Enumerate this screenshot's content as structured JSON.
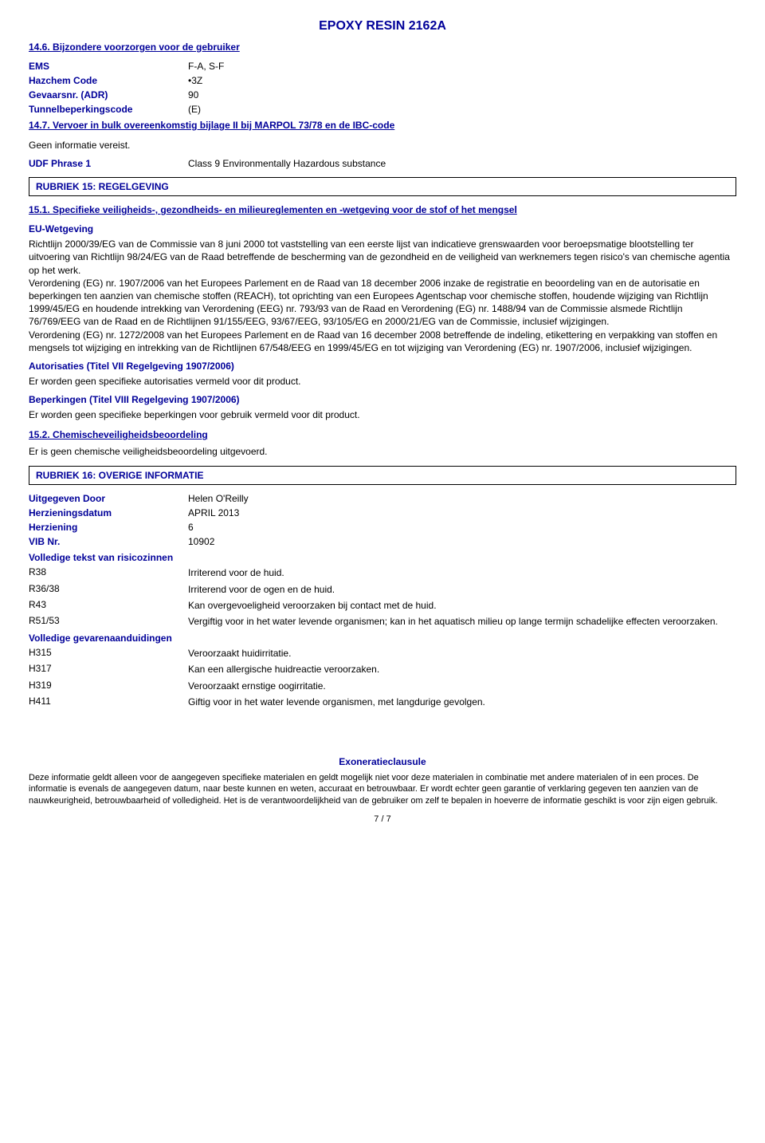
{
  "title": "EPOXY RESIN 2162A",
  "section_14_6": {
    "heading": "14.6. Bijzondere voorzorgen voor de gebruiker",
    "rows": [
      {
        "label": "EMS",
        "value": "F-A,  S-F"
      },
      {
        "label": "Hazchem Code",
        "value": "•3Z"
      },
      {
        "label": "Gevaarsnr. (ADR)",
        "value": "90"
      },
      {
        "label": "Tunnelbeperkingscode",
        "value": "(E)"
      }
    ]
  },
  "section_14_7": {
    "heading": "14.7. Vervoer in bulk overeenkomstig bijlage II bij MARPOL 73/78 en de IBC-code",
    "paragraph": "Geen informatie vereist.",
    "udf_label": "UDF Phrase 1",
    "udf_value": "Class 9 Environmentally Hazardous substance"
  },
  "rubriek_15": "RUBRIEK 15: REGELGEVING",
  "section_15_1": {
    "heading": "15.1. Specifieke veiligheids-, gezondheids- en milieureglementen en -wetgeving voor de stof of het mengsel",
    "eu_label": "EU-Wetgeving",
    "eu_text": "Richtlijn 2000/39/EG van de Commissie van 8 juni 2000 tot vaststelling van een eerste lijst van indicatieve grenswaarden voor beroepsmatige blootstelling ter uitvoering van Richtlijn 98/24/EG van de Raad betreffende de bescherming van de gezondheid en de veiligheid van werknemers tegen risico's van chemische agentia op het werk.\nVerordening (EG) nr. 1907/2006 van het Europees Parlement en de Raad van 18 december 2006 inzake de registratie en beoordeling van en de autorisatie en beperkingen ten aanzien van chemische stoffen (REACH),  tot oprichting van een Europees Agentschap voor chemische stoffen,  houdende wijziging van Richtlijn 1999/45/EG en houdende intrekking van Verordening (EEG) nr. 793/93 van de Raad en Verordening (EG) nr. 1488/94 van de Commissie alsmede Richtlijn 76/769/EEG van de Raad en de Richtlijnen 91/155/EEG,  93/67/EEG,  93/105/EG en 2000/21/EG van de Commissie,  inclusief wijzigingen.\nVerordening (EG) nr. 1272/2008 van het Europees Parlement en de Raad van 16 december 2008 betreffende de indeling, etikettering en verpakking van stoffen en mengsels tot wijziging en intrekking van de Richtlijnen 67/548/EEG en 1999/45/EG en tot wijziging van Verordening (EG) nr. 1907/2006,  inclusief wijzigingen.",
    "auth_label": "Autorisaties (Titel VII Regelgeving 1907/2006)",
    "auth_text": "Er worden geen specifieke autorisaties vermeld voor dit product.",
    "rest_label": "Beperkingen (Titel VIII Regelgeving 1907/2006)",
    "rest_text": "Er worden geen specifieke beperkingen voor gebruik vermeld voor dit product."
  },
  "section_15_2": {
    "heading": "15.2. Chemischeveiligheidsbeoordeling",
    "text": "Er is geen chemische veiligheidsbeoordeling uitgevoerd."
  },
  "rubriek_16": "RUBRIEK 16: OVERIGE INFORMATIE",
  "info_rows": [
    {
      "label": "Uitgegeven Door",
      "value": "Helen O'Reilly"
    },
    {
      "label": "Herzieningsdatum",
      "value": "APRIL 2013"
    },
    {
      "label": "Herziening",
      "value": "6"
    },
    {
      "label": "VIB Nr.",
      "value": "10902"
    }
  ],
  "risk_label": "Volledige tekst van risicozinnen",
  "risk_rows": [
    {
      "code": "R38",
      "text": "Irriterend voor de huid."
    },
    {
      "code": "R36/38",
      "text": "Irriterend voor de ogen en de huid."
    },
    {
      "code": "R43",
      "text": "Kan overgevoeligheid veroorzaken bij contact met de huid."
    },
    {
      "code": "R51/53",
      "text": "Vergiftig voor in het water levende organismen; kan in het aquatisch milieu op lange termijn schadelijke effecten veroorzaken."
    }
  ],
  "hazard_label": "Volledige gevarenaanduidingen",
  "hazard_rows": [
    {
      "code": "H315",
      "text": "Veroorzaakt huidirritatie."
    },
    {
      "code": "H317",
      "text": "Kan een allergische huidreactie veroorzaken."
    },
    {
      "code": "H319",
      "text": "Veroorzaakt ernstige oogirritatie."
    },
    {
      "code": "H411",
      "text": "Giftig voor in het water levende organismen, met langdurige gevolgen."
    }
  ],
  "disclaimer_title": "Exoneratieclausule",
  "disclaimer_text": "Deze informatie geldt alleen voor de aangegeven specifieke materialen en geldt mogelijk niet voor deze materialen in combinatie met andere materialen of in een proces. De informatie is evenals de aangegeven datum, naar beste kunnen en weten, accuraat en betrouwbaar. Er wordt echter geen garantie of verklaring gegeven ten aanzien van de nauwkeurigheid, betrouwbaarheid of volledigheid. Het is de verantwoordelijkheid van de gebruiker om zelf te bepalen in hoeverre de informatie geschikt is voor zijn eigen gebruik.",
  "page_num": "7 /  7"
}
